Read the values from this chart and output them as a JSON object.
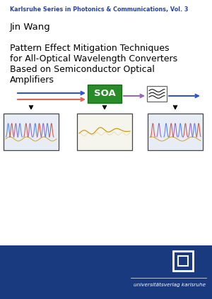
{
  "header_text": "Karlsruhe Series in Photonics & Communications, Vol. 3",
  "header_color": "#2244AA",
  "author": "Jin Wang",
  "title_lines": [
    "Pattern Effect Mitigation Techniques",
    "for All-Optical Wavelength Converters",
    "Based on Semiconductor Optical",
    "Amplifiers"
  ],
  "bg_color": "#FFFFFF",
  "footer_bg": "#1A3A80",
  "footer_text": "universitätsverlag karlsruhe",
  "footer_text_color": "#FFFFFF",
  "soa_box_color": "#2A8B2A",
  "soa_text_color": "#FFFFFF",
  "box1_bg": "#E8EDF5",
  "box2_bg": "#F5F5EE",
  "box3_bg": "#E8EDF5"
}
